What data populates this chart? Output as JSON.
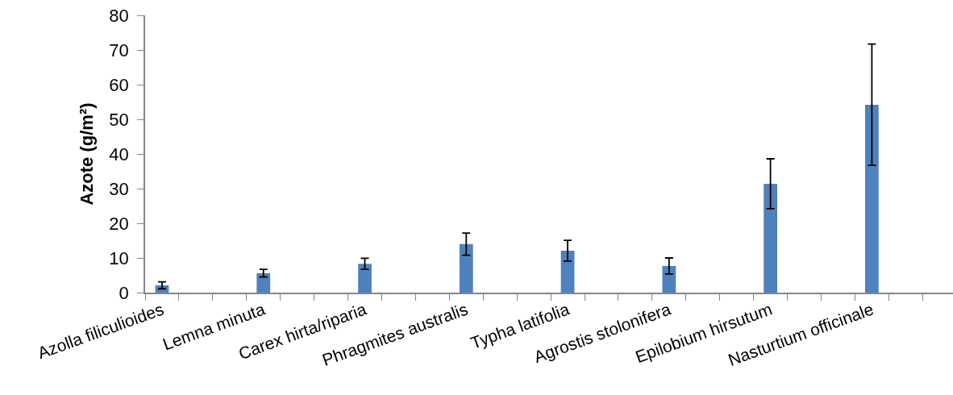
{
  "chart_data": {
    "type": "bar",
    "ylabel": "Azote (g/m²)",
    "categories": [
      "Azolla filiculioides",
      null,
      null,
      "Lemna minuta",
      null,
      null,
      "Carex hirta/riparia",
      null,
      null,
      "Phragmites australis",
      null,
      null,
      "Typha latifolia",
      null,
      null,
      "Agrostis stolonifera",
      null,
      null,
      "Epilobium hirsutum",
      null,
      null,
      "Nasturtium officinale",
      null
    ],
    "values": [
      2.1,
      null,
      null,
      5.6,
      null,
      null,
      8.3,
      null,
      null,
      14.0,
      null,
      null,
      12.1,
      null,
      null,
      7.7,
      null,
      null,
      31.4,
      null,
      null,
      54.2,
      null
    ],
    "errors": [
      1.0,
      null,
      null,
      1.1,
      null,
      null,
      1.6,
      null,
      null,
      3.2,
      null,
      null,
      3.0,
      null,
      null,
      2.3,
      null,
      null,
      7.2,
      null,
      null,
      17.5,
      null
    ],
    "color": "#4f81bd",
    "ylim": [
      0,
      80
    ],
    "yticks": [
      0,
      10,
      20,
      30,
      40,
      50,
      60,
      70,
      80
    ],
    "grid": false
  }
}
